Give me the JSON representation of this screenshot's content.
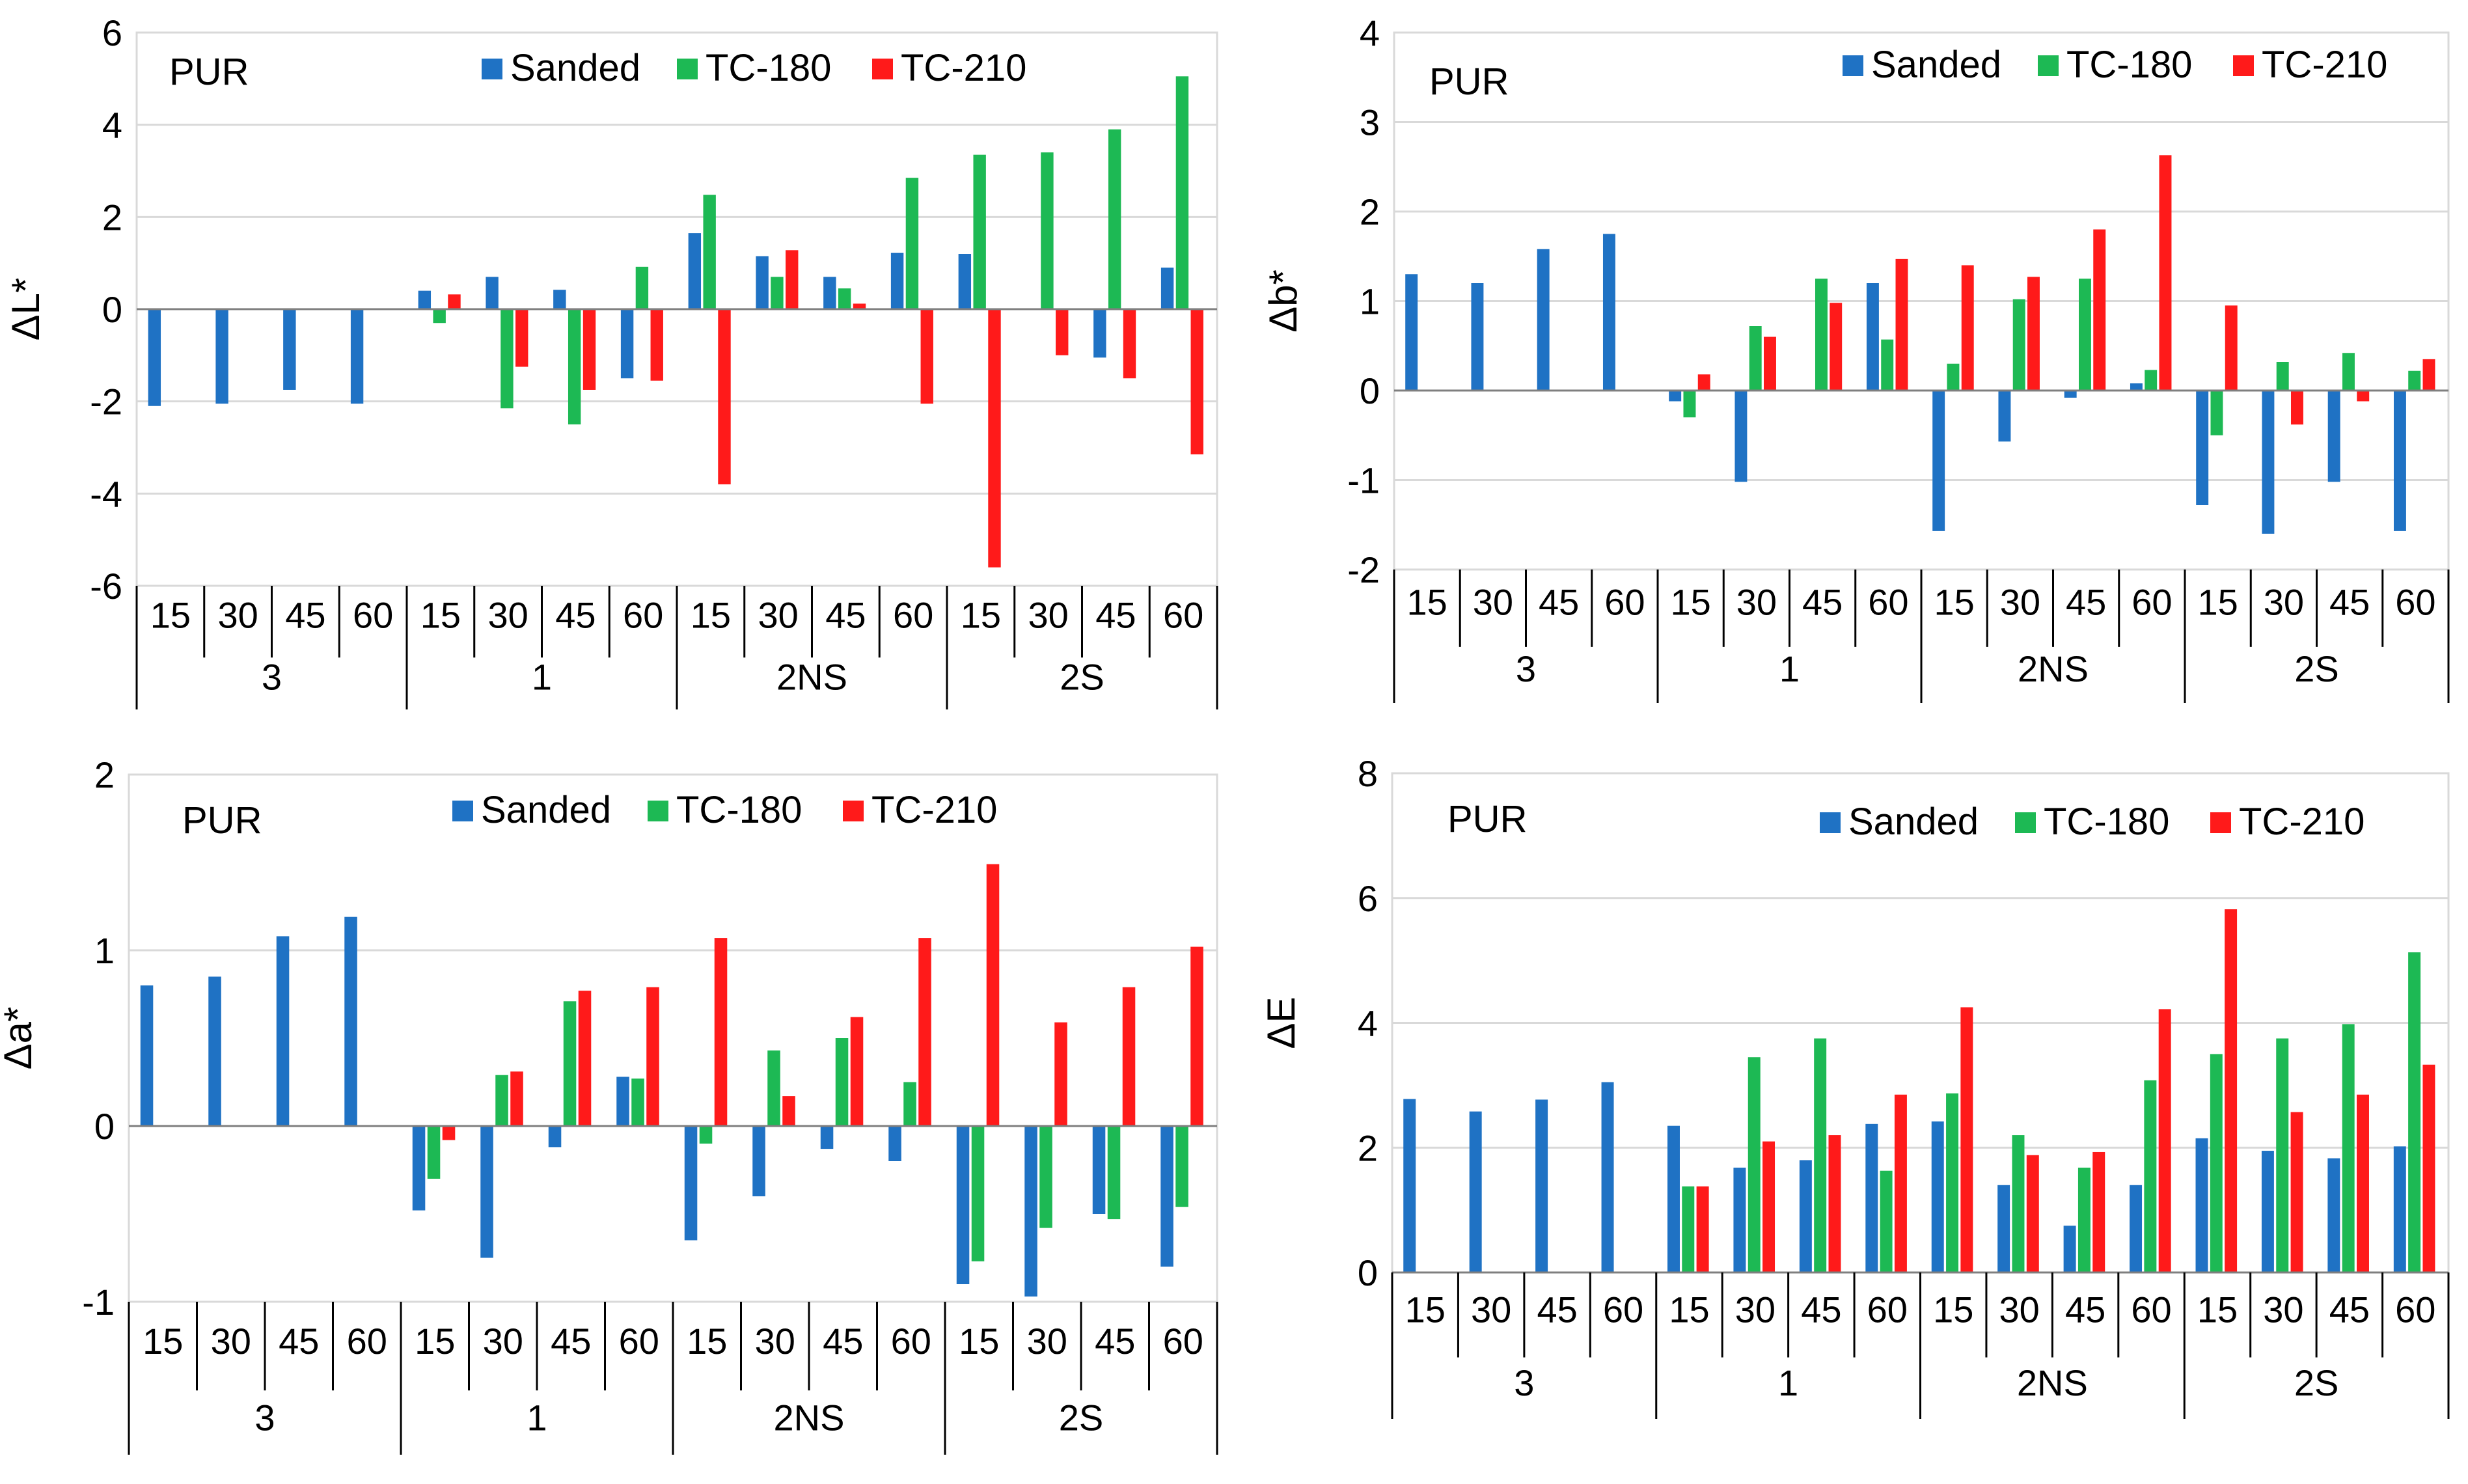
{
  "colors": {
    "sanded": "#1f72c4",
    "sanded_tl": "#3a7ec6",
    "tc180": "#1db954",
    "tc210": "#ff1a1a",
    "grid": "#d9d9d9",
    "axis": "#7f7f7f"
  },
  "chart_data": [
    {
      "type": "bar",
      "title": "PUR",
      "ylabel": "ΔL*",
      "ylim": [
        -6,
        6
      ],
      "yticks": [
        -6,
        -4,
        -2,
        0,
        2,
        4,
        6
      ],
      "ytick_labels": [
        "-6",
        "-4",
        "-2",
        "0",
        "2",
        "4",
        "6"
      ],
      "groups": [
        "3",
        "1",
        "2NS",
        "2S"
      ],
      "subcategories": [
        "15",
        "30",
        "45",
        "60"
      ],
      "categories": [
        "15",
        "30",
        "45",
        "60",
        "15",
        "30",
        "45",
        "60",
        "15",
        "30",
        "45",
        "60",
        "15",
        "30",
        "45",
        "60"
      ],
      "legend": [
        "Sanded",
        "TC-180",
        "TC-210"
      ],
      "series": [
        {
          "name": "Sanded",
          "values": [
            -2.1,
            -2.05,
            -1.75,
            -2.05,
            0.4,
            0.7,
            0.42,
            -1.5,
            1.65,
            1.15,
            0.7,
            1.22,
            1.2,
            null,
            -1.05,
            0.9
          ]
        },
        {
          "name": "TC-180",
          "values": [
            null,
            null,
            null,
            null,
            -0.3,
            -2.15,
            -2.5,
            0.92,
            2.48,
            0.7,
            0.45,
            2.85,
            3.35,
            3.4,
            3.9,
            5.05
          ]
        },
        {
          "name": "TC-210",
          "values": [
            null,
            null,
            null,
            null,
            0.32,
            -1.25,
            -1.75,
            -1.55,
            -3.8,
            1.28,
            0.12,
            -2.05,
            -5.6,
            -1.0,
            -1.5,
            -3.15
          ]
        }
      ]
    },
    {
      "type": "bar",
      "title": "PUR",
      "ylabel": "Δb*",
      "ylim": [
        -2,
        4
      ],
      "yticks": [
        -2,
        -1,
        0,
        1,
        2,
        3,
        4
      ],
      "ytick_labels": [
        "-2",
        "-1",
        "0",
        "1",
        "2",
        "3",
        "4"
      ],
      "groups": [
        "3",
        "1",
        "2NS",
        "2S"
      ],
      "subcategories": [
        "15",
        "30",
        "45",
        "60"
      ],
      "categories": [
        "15",
        "30",
        "45",
        "60",
        "15",
        "30",
        "45",
        "60",
        "15",
        "30",
        "45",
        "60",
        "15",
        "30",
        "45",
        "60"
      ],
      "legend": [
        "Sanded",
        "TC-180",
        "TC-210"
      ],
      "series": [
        {
          "name": "Sanded",
          "values": [
            1.3,
            1.2,
            1.58,
            1.75,
            -0.12,
            -1.02,
            null,
            1.2,
            -1.57,
            -0.57,
            -0.08,
            0.08,
            -1.28,
            -1.6,
            -1.02,
            -1.57
          ]
        },
        {
          "name": "TC-180",
          "values": [
            null,
            null,
            null,
            null,
            -0.3,
            0.72,
            1.25,
            0.57,
            0.3,
            1.02,
            1.25,
            0.23,
            -0.5,
            0.32,
            0.42,
            0.22
          ]
        },
        {
          "name": "TC-210",
          "values": [
            null,
            null,
            null,
            null,
            0.18,
            0.6,
            0.98,
            1.47,
            1.4,
            1.27,
            1.8,
            2.63,
            0.95,
            -0.38,
            -0.12,
            0.35
          ]
        }
      ]
    },
    {
      "type": "bar",
      "title": "PUR",
      "ylabel": "Δa*",
      "ylim": [
        -1,
        2
      ],
      "yticks": [
        -1,
        0,
        1,
        2
      ],
      "ytick_labels": [
        "-1",
        "0",
        "1",
        "2"
      ],
      "groups": [
        "3",
        "1",
        "2NS",
        "2S"
      ],
      "subcategories": [
        "15",
        "30",
        "45",
        "60"
      ],
      "categories": [
        "15",
        "30",
        "45",
        "60",
        "15",
        "30",
        "45",
        "60",
        "15",
        "30",
        "45",
        "60",
        "15",
        "30",
        "45",
        "60"
      ],
      "legend": [
        "Sanded",
        "TC-180",
        "TC-210"
      ],
      "series": [
        {
          "name": "Sanded",
          "values": [
            0.8,
            0.85,
            1.08,
            1.19,
            -0.48,
            -0.75,
            -0.12,
            0.28,
            -0.65,
            -0.4,
            -0.13,
            -0.2,
            -0.9,
            -0.97,
            -0.5,
            -0.8
          ]
        },
        {
          "name": "TC-180",
          "values": [
            null,
            null,
            null,
            null,
            -0.3,
            0.29,
            0.71,
            0.27,
            -0.1,
            0.43,
            0.5,
            0.25,
            -0.77,
            -0.58,
            -0.53,
            -0.46
          ]
        },
        {
          "name": "TC-210",
          "values": [
            null,
            null,
            null,
            null,
            -0.08,
            0.31,
            0.77,
            0.79,
            1.07,
            0.17,
            0.62,
            1.07,
            1.49,
            0.59,
            0.79,
            1.02
          ]
        }
      ]
    },
    {
      "type": "bar",
      "title": "PUR",
      "ylabel": "ΔE",
      "ylim": [
        0,
        8
      ],
      "yticks": [
        0,
        2,
        4,
        6,
        8
      ],
      "ytick_labels": [
        "0",
        "2",
        "4",
        "6",
        "8"
      ],
      "groups": [
        "3",
        "1",
        "2NS",
        "2S"
      ],
      "subcategories": [
        "15",
        "30",
        "45",
        "60"
      ],
      "categories": [
        "15",
        "30",
        "45",
        "60",
        "15",
        "30",
        "45",
        "60",
        "15",
        "30",
        "45",
        "60",
        "15",
        "30",
        "45",
        "60"
      ],
      "legend": [
        "Sanded",
        "TC-180",
        "TC-210"
      ],
      "series": [
        {
          "name": "Sanded",
          "values": [
            2.78,
            2.58,
            2.77,
            3.05,
            2.35,
            1.68,
            1.8,
            2.38,
            2.42,
            1.4,
            0.75,
            1.4,
            2.15,
            1.95,
            1.83,
            2.02
          ]
        },
        {
          "name": "TC-180",
          "values": [
            null,
            null,
            null,
            null,
            1.38,
            3.45,
            3.75,
            1.63,
            2.87,
            2.2,
            1.68,
            3.08,
            3.5,
            3.75,
            3.98,
            5.13
          ]
        },
        {
          "name": "TC-210",
          "values": [
            null,
            null,
            null,
            null,
            1.38,
            2.1,
            2.2,
            2.85,
            4.25,
            1.88,
            1.93,
            4.22,
            5.82,
            2.57,
            2.85,
            3.33
          ]
        }
      ]
    }
  ]
}
